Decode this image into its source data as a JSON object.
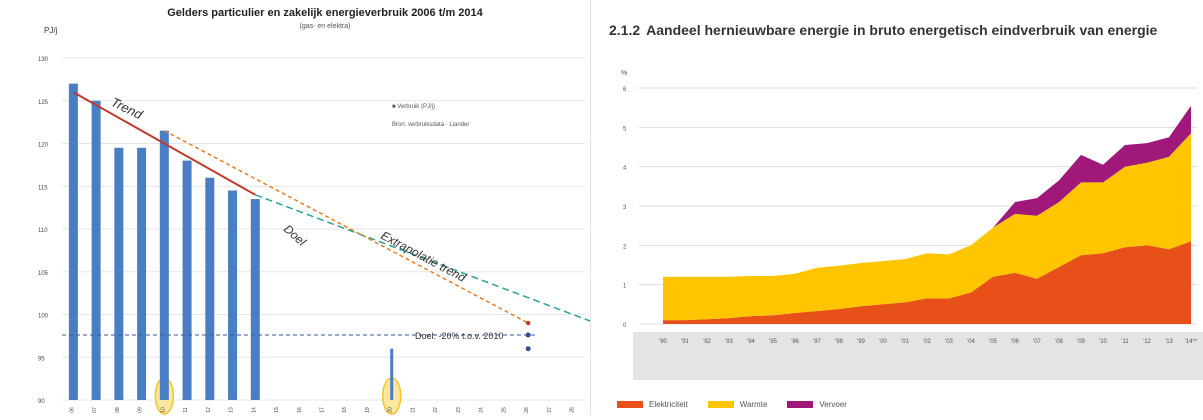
{
  "colors": {
    "bar": "#4a7ec4",
    "trend": "#c0392b",
    "doel": "#e67e22",
    "extrapolatie": "#2aa198",
    "elektriciteit": "#e8501a",
    "warmte": "#ffc600",
    "vervoer": "#a0197a",
    "highlight": "#f4c430"
  },
  "chart_data": [
    {
      "type": "bar",
      "title": "Gelders particulier en zakelijk energieverbruik 2006 t/m 2014",
      "subtitle": "(gas- en elektra)",
      "ylabel": "PJ/j",
      "ylim": [
        90,
        130
      ],
      "yticks": [
        "130",
        "125",
        "120",
        "115",
        "110",
        "105",
        "100",
        "95",
        "90"
      ],
      "categories": [
        "06",
        "07",
        "08",
        "09",
        "10",
        "11",
        "12",
        "13",
        "14",
        "15",
        "16",
        "17",
        "18",
        "19",
        "20",
        "21",
        "22",
        "23",
        "24",
        "25",
        "26",
        "27",
        "28"
      ],
      "values": [
        127,
        125,
        119.5,
        119.5,
        121.5,
        118,
        116,
        114.5,
        113.5,
        null,
        null,
        null,
        null,
        null,
        96,
        null,
        null,
        null,
        null,
        null,
        null,
        null,
        null
      ],
      "highlighted": [
        "10",
        "20"
      ],
      "legend": [
        "■ Verbruik (PJ/j)",
        "Bron: verbruiksdata · Liander"
      ],
      "annotations": {
        "trend": "Trend",
        "doel": "Doel",
        "extrapolatie": "Extrapolatie trend",
        "target": "Doel: -20% t.o.v. 2010"
      },
      "target_value": 97.6
    },
    {
      "type": "area",
      "title": "Aandeel hernieuwbare energie in bruto energetisch eindverbruik van energie",
      "section": "2.1.2",
      "ylabel": "%",
      "ylim": [
        0,
        6
      ],
      "yticks": [
        "0",
        "1",
        "2",
        "3",
        "4",
        "5",
        "6"
      ],
      "x": [
        "'90",
        "'91",
        "'92",
        "'93",
        "'94",
        "'95",
        "'96",
        "'97",
        "'98",
        "'99",
        "'00",
        "'01",
        "'02",
        "'03",
        "'04",
        "'05",
        "'06",
        "'07",
        "'08",
        "'09",
        "'10",
        "'11",
        "'12",
        "'13",
        "'14**"
      ],
      "series": [
        {
          "name": "Elektriciteit",
          "values": [
            0.1,
            0.1,
            0.12,
            0.15,
            0.2,
            0.22,
            0.28,
            0.33,
            0.38,
            0.45,
            0.5,
            0.55,
            0.65,
            0.65,
            0.8,
            1.2,
            1.3,
            1.15,
            1.45,
            1.75,
            1.8,
            1.95,
            2.0,
            1.9,
            2.1
          ]
        },
        {
          "name": "Warmte",
          "values": [
            1.1,
            1.1,
            1.08,
            1.05,
            1.02,
            1.0,
            1.0,
            1.1,
            1.1,
            1.1,
            1.1,
            1.1,
            1.15,
            1.12,
            1.2,
            1.25,
            1.5,
            1.6,
            1.65,
            1.85,
            1.8,
            2.05,
            2.1,
            2.35,
            2.75
          ]
        },
        {
          "name": "Vervoer",
          "values": [
            0,
            0,
            0,
            0,
            0,
            0,
            0,
            0,
            0,
            0,
            0,
            0,
            0,
            0,
            0,
            0,
            0.3,
            0.45,
            0.55,
            0.7,
            0.45,
            0.55,
            0.5,
            0.5,
            0.7
          ]
        }
      ]
    }
  ]
}
